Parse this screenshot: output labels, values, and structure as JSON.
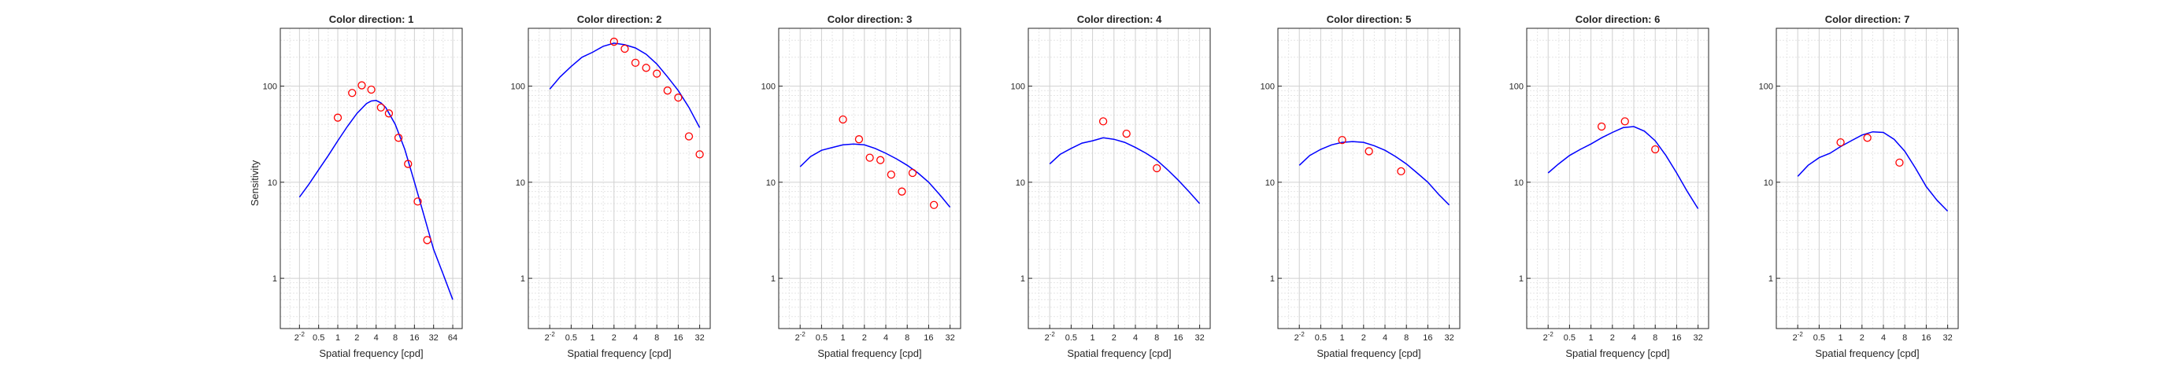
{
  "figure": {
    "ylabel": "Sensitivity",
    "xlabel": "Spatial frequency [cpd]"
  },
  "chart_data": [
    {
      "type": "line",
      "title": "Color direction: 1",
      "xlabel": "Spatial frequency [cpd]",
      "ylabel": "Sensitivity",
      "xscale": "log2",
      "yscale": "log10",
      "xlim": [
        0.125,
        90
      ],
      "ylim": [
        0.3,
        400
      ],
      "xticks": [
        "2^-2",
        "0.5",
        "1",
        "2",
        "4",
        "8",
        "16",
        "32",
        "64"
      ],
      "yticks": [
        "1",
        "10",
        "100"
      ],
      "grid": true,
      "series": [
        {
          "kind": "line",
          "color": "#0000ff",
          "x": [
            0.25,
            0.35,
            0.5,
            0.71,
            1.0,
            1.41,
            2.0,
            2.83,
            3.36,
            4.0,
            4.76,
            5.66,
            8.0,
            11.3,
            16.0,
            22.6,
            32.0,
            45.3,
            64.0
          ],
          "y": [
            7.0,
            9.5,
            13.5,
            19,
            27,
            38,
            52,
            66,
            70,
            71,
            67,
            60,
            40,
            22,
            10,
            4.5,
            2.0,
            1.1,
            0.6
          ]
        },
        {
          "kind": "scatter",
          "color": "#ff0000",
          "x": [
            1.0,
            1.68,
            2.38,
            3.36,
            4.76,
            6.35,
            8.98,
            12.7,
            18.0,
            25.4
          ],
          "y": [
            47,
            85,
            102,
            92,
            60,
            52,
            29,
            15.5,
            6.3,
            2.5
          ]
        }
      ]
    },
    {
      "type": "line",
      "title": "Color direction: 2",
      "xlabel": "Spatial frequency [cpd]",
      "ylabel": "Sensitivity",
      "xscale": "log2",
      "yscale": "log10",
      "xlim": [
        0.125,
        45
      ],
      "ylim": [
        0.3,
        400
      ],
      "xticks": [
        "2^-2",
        "0.5",
        "1",
        "2",
        "4",
        "8",
        "16",
        "32"
      ],
      "yticks": [
        "1",
        "10",
        "100"
      ],
      "grid": true,
      "series": [
        {
          "kind": "line",
          "color": "#0000ff",
          "x": [
            0.25,
            0.35,
            0.5,
            0.71,
            1.0,
            1.41,
            2.0,
            2.83,
            4.0,
            5.66,
            8.0,
            11.3,
            16.0,
            22.6,
            32.0
          ],
          "y": [
            93,
            125,
            160,
            200,
            225,
            260,
            280,
            270,
            250,
            215,
            170,
            125,
            90,
            60,
            37
          ]
        },
        {
          "kind": "scatter",
          "color": "#ff0000",
          "x": [
            2.0,
            2.83,
            4.0,
            5.66,
            8.0,
            11.3,
            16.0,
            22.6,
            32.0
          ],
          "y": [
            290,
            245,
            175,
            155,
            135,
            90,
            76,
            30,
            19.5
          ]
        }
      ]
    },
    {
      "type": "line",
      "title": "Color direction: 3",
      "xlabel": "Spatial frequency [cpd]",
      "ylabel": "Sensitivity",
      "xscale": "log2",
      "yscale": "log10",
      "xlim": [
        0.125,
        45
      ],
      "ylim": [
        0.3,
        400
      ],
      "xticks": [
        "2^-2",
        "0.5",
        "1",
        "2",
        "4",
        "8",
        "16",
        "32"
      ],
      "yticks": [
        "1",
        "10",
        "100"
      ],
      "grid": true,
      "series": [
        {
          "kind": "line",
          "color": "#0000ff",
          "x": [
            0.25,
            0.35,
            0.5,
            0.71,
            1.0,
            1.41,
            2.0,
            2.83,
            4.0,
            5.66,
            8.0,
            11.3,
            16.0,
            22.6,
            32.0
          ],
          "y": [
            14.5,
            18.5,
            21.5,
            23,
            24.5,
            25,
            24.5,
            22.5,
            20,
            17.5,
            15,
            12.5,
            10,
            7.5,
            5.5
          ]
        },
        {
          "kind": "scatter",
          "color": "#ff0000",
          "x": [
            1.0,
            1.68,
            2.38,
            3.36,
            4.76,
            6.73,
            9.51,
            19.0
          ],
          "y": [
            45,
            28,
            18,
            17,
            12,
            8,
            12.5,
            5.8
          ]
        }
      ]
    },
    {
      "type": "line",
      "title": "Color direction: 4",
      "xlabel": "Spatial frequency [cpd]",
      "ylabel": "Sensitivity",
      "xscale": "log2",
      "yscale": "log10",
      "xlim": [
        0.125,
        45
      ],
      "ylim": [
        0.3,
        400
      ],
      "xticks": [
        "2^-2",
        "0.5",
        "1",
        "2",
        "4",
        "8",
        "16",
        "32"
      ],
      "yticks": [
        "1",
        "10",
        "100"
      ],
      "grid": true,
      "series": [
        {
          "kind": "line",
          "color": "#0000ff",
          "x": [
            0.25,
            0.35,
            0.5,
            0.71,
            1.0,
            1.41,
            2.0,
            2.83,
            4.0,
            5.66,
            8.0,
            11.3,
            16.0,
            22.6,
            32.0
          ],
          "y": [
            15.5,
            19.5,
            22.5,
            25.5,
            27,
            29,
            28,
            26,
            23,
            20,
            17,
            13.5,
            10.5,
            8,
            6
          ]
        },
        {
          "kind": "scatter",
          "color": "#ff0000",
          "x": [
            1.41,
            3.0,
            8.0
          ],
          "y": [
            43,
            32,
            14
          ]
        }
      ]
    },
    {
      "type": "line",
      "title": "Color direction: 5",
      "xlabel": "Spatial frequency [cpd]",
      "ylabel": "Sensitivity",
      "xscale": "log2",
      "yscale": "log10",
      "xlim": [
        0.125,
        45
      ],
      "ylim": [
        0.3,
        400
      ],
      "xticks": [
        "2^-2",
        "0.5",
        "1",
        "2",
        "4",
        "8",
        "16",
        "32"
      ],
      "yticks": [
        "1",
        "10",
        "100"
      ],
      "grid": true,
      "series": [
        {
          "kind": "line",
          "color": "#0000ff",
          "x": [
            0.25,
            0.35,
            0.5,
            0.71,
            1.0,
            1.41,
            2.0,
            2.83,
            4.0,
            5.66,
            8.0,
            11.3,
            16.0,
            22.6,
            32.0
          ],
          "y": [
            15,
            19,
            22,
            24.5,
            26,
            26.5,
            26,
            24,
            21.5,
            18.5,
            15.5,
            12.5,
            10,
            7.5,
            5.8
          ]
        },
        {
          "kind": "scatter",
          "color": "#ff0000",
          "x": [
            1.0,
            2.38,
            6.73
          ],
          "y": [
            27.5,
            21,
            13
          ]
        }
      ]
    },
    {
      "type": "line",
      "title": "Color direction: 6",
      "xlabel": "Spatial frequency [cpd]",
      "ylabel": "Sensitivity",
      "xscale": "log2",
      "yscale": "log10",
      "xlim": [
        0.125,
        45
      ],
      "ylim": [
        0.3,
        400
      ],
      "xticks": [
        "2^-2",
        "0.5",
        "1",
        "2",
        "4",
        "8",
        "16",
        "32"
      ],
      "yticks": [
        "1",
        "10",
        "100"
      ],
      "grid": true,
      "series": [
        {
          "kind": "line",
          "color": "#0000ff",
          "x": [
            0.25,
            0.35,
            0.5,
            0.71,
            1.0,
            1.41,
            2.0,
            2.83,
            4.0,
            5.66,
            8.0,
            11.3,
            16.0,
            22.6,
            32.0
          ],
          "y": [
            12.5,
            15.5,
            19,
            22,
            25,
            29,
            33,
            37,
            38,
            34,
            27,
            19,
            12.5,
            8,
            5.3
          ]
        },
        {
          "kind": "scatter",
          "color": "#ff0000",
          "x": [
            1.41,
            3.0,
            8.0
          ],
          "y": [
            38,
            43,
            22
          ]
        }
      ]
    },
    {
      "type": "line",
      "title": "Color direction: 7",
      "xlabel": "Spatial frequency [cpd]",
      "ylabel": "Sensitivity",
      "xscale": "log2",
      "yscale": "log10",
      "xlim": [
        0.125,
        45
      ],
      "ylim": [
        0.3,
        400
      ],
      "xticks": [
        "2^-2",
        "0.5",
        "1",
        "2",
        "4",
        "8",
        "16",
        "32"
      ],
      "yticks": [
        "1",
        "10",
        "100"
      ],
      "grid": true,
      "series": [
        {
          "kind": "line",
          "color": "#0000ff",
          "x": [
            0.25,
            0.35,
            0.5,
            0.71,
            1.0,
            1.41,
            2.0,
            2.83,
            4.0,
            5.66,
            8.0,
            11.3,
            16.0,
            22.6,
            32.0
          ],
          "y": [
            11.5,
            15,
            18,
            20,
            23.5,
            27,
            31,
            33.5,
            33,
            28,
            21,
            14,
            9,
            6.5,
            5
          ]
        },
        {
          "kind": "scatter",
          "color": "#ff0000",
          "x": [
            1.0,
            2.38,
            6.73
          ],
          "y": [
            26,
            29,
            16
          ]
        }
      ]
    }
  ]
}
